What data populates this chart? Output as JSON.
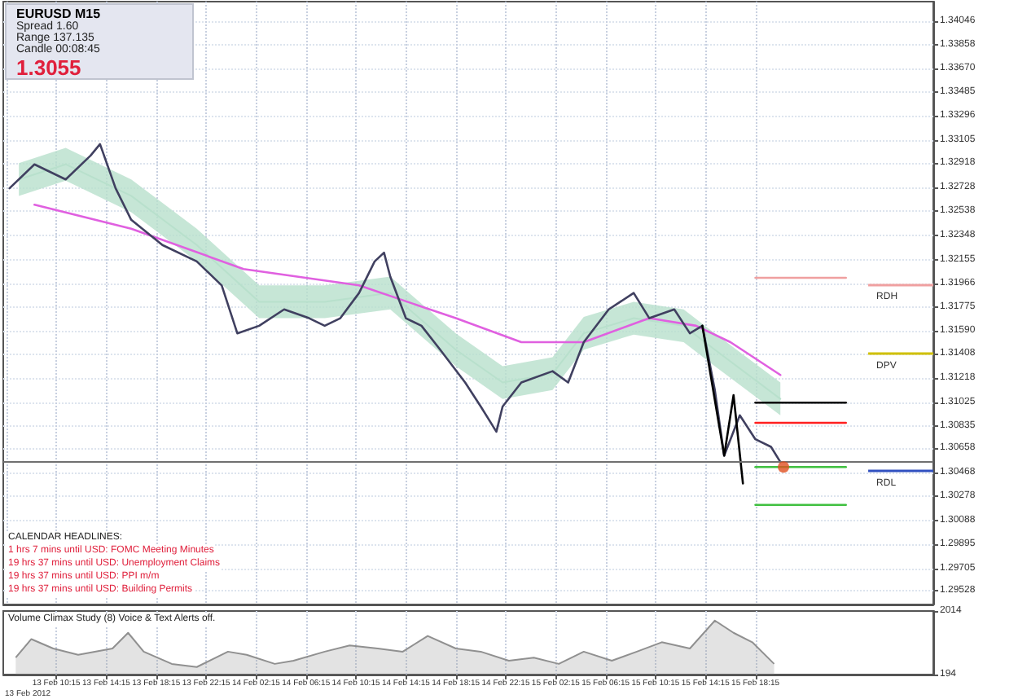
{
  "chart_data": [
    {
      "type": "line",
      "title": "EURUSD  M15",
      "annotations": [
        "Spread  1.60",
        "Range  137.135",
        "Candle  00:08:45",
        "1.3055",
        "CALENDAR HEADLINES:",
        "1 hrs 7 mins until USD: FOMC Meeting Minutes",
        "19 hrs 37 mins until USD: Unemployment Claims",
        "19 hrs 37 mins until USD: PPI m/m",
        "19 hrs 37 mins until USD: Building Permits"
      ],
      "xlim": [
        "2012-02-13T06:00",
        "2012-02-16T08:30"
      ],
      "xticks": [
        {
          "value": "2012-02-13T06:15",
          "label": null
        },
        {
          "value": "2012-02-13T10:15",
          "label": null
        },
        {
          "value": "2012-02-13T14:15",
          "label": null
        },
        {
          "value": "2012-02-13T18:15",
          "label": null
        },
        {
          "value": "2012-02-13T22:15",
          "label": null
        },
        {
          "value": "2012-02-14T02:15",
          "label": null
        },
        {
          "value": "2012-02-14T06:15",
          "label": null
        },
        {
          "value": "2012-02-14T10:15",
          "label": null
        },
        {
          "value": "2012-02-14T14:15",
          "label": null
        },
        {
          "value": "2012-02-14T18:15",
          "label": null
        },
        {
          "value": "2012-02-14T22:15",
          "label": null
        },
        {
          "value": "2012-02-15T02:15",
          "label": null
        },
        {
          "value": "2012-02-15T06:15",
          "label": null
        },
        {
          "value": "2012-02-15T10:15",
          "label": null
        },
        {
          "value": "2012-02-15T14:15",
          "label": null
        },
        {
          "value": "2012-02-15T18:15",
          "label": null
        }
      ],
      "ylim": [
        1.2942,
        1.342
      ],
      "yticks": [
        1.34046,
        1.33858,
        {
          "value": 1.3367,
          "label": "1.33670"
        },
        1.33485,
        1.33296,
        1.33105,
        1.32918,
        1.32728,
        1.32538,
        1.32348,
        1.32155,
        1.31966,
        1.31775,
        {
          "value": 1.3159,
          "label": "1.31590"
        },
        1.31408,
        1.31218,
        1.31025,
        1.30835,
        1.30658,
        1.30468,
        1.30278,
        1.30088,
        1.29895,
        1.29705,
        1.29528
      ],
      "tick_labels": "y",
      "grid": true,
      "marker": "none",
      "line_style": "solid",
      "ref_lines": [
        {
          "axis": "y",
          "value": 1.3196,
          "label": "RDH",
          "color": "#f0a0a0"
        },
        {
          "axis": "y",
          "value": 1.31408,
          "label": "DPV",
          "color": "#d0c000"
        },
        {
          "axis": "y",
          "value": 1.3048,
          "label": "RDL",
          "color": "#3050c0"
        },
        {
          "axis": "y",
          "value": 1.3055,
          "label": null,
          "color": "#707070"
        }
      ],
      "series": [
        {
          "color": "#b8e0cc",
          "x": [
            "2012-02-13T07:15",
            "2012-02-13T11:00",
            "2012-02-13T16:15",
            "2012-02-13T21:30",
            "2012-02-14T02:30",
            "2012-02-14T07:45",
            "2012-02-14T13:00",
            "2012-02-14T18:15",
            "2012-02-14T22:00",
            "2012-02-15T02:00",
            "2012-02-15T04:30",
            "2012-02-15T08:30",
            "2012-02-15T12:30",
            "2012-02-15T15:00",
            "2012-02-15T20:15"
          ],
          "values": [
            1.3279,
            1.3291,
            1.3266,
            1.3227,
            1.3182,
            1.3182,
            1.3189,
            1.3144,
            1.3118,
            1.3125,
            1.3157,
            1.3169,
            1.3163,
            1.3144,
            1.3105
          ],
          "lower": [
            1.3266,
            1.3278,
            1.3253,
            1.3214,
            1.3169,
            1.3169,
            1.3176,
            1.3131,
            1.3105,
            1.3112,
            1.3144,
            1.3156,
            1.315,
            1.3131,
            1.3092
          ],
          "upper": [
            1.3292,
            1.3304,
            1.3279,
            1.324,
            1.3195,
            1.3195,
            1.3202,
            1.3157,
            1.3131,
            1.3138,
            1.317,
            1.3182,
            1.3176,
            1.3157,
            1.3118
          ]
        },
        {
          "color": "#e060e0",
          "x": [
            "2012-02-13T08:30",
            "2012-02-13T16:15",
            "2012-02-14T01:15",
            "2012-02-14T10:30",
            "2012-02-14T18:15",
            "2012-02-14T23:30",
            "2012-02-15T04:30",
            "2012-02-15T09:45",
            "2012-02-15T13:30",
            "2012-02-15T16:15",
            "2012-02-15T20:15"
          ],
          "values": [
            1.3259,
            1.324,
            1.3208,
            1.3195,
            1.3169,
            1.315,
            1.315,
            1.3169,
            1.3163,
            1.315,
            1.3124
          ]
        },
        {
          "color": "#404060",
          "x": [
            "2012-02-13T06:30",
            "2012-02-13T08:30",
            "2012-02-13T11:00",
            "2012-02-13T13:00",
            "2012-02-13T13:45",
            "2012-02-13T15:00",
            "2012-02-13T16:15",
            "2012-02-13T18:45",
            "2012-02-13T21:30",
            "2012-02-13T23:30",
            "2012-02-14T00:45",
            "2012-02-14T02:30",
            "2012-02-14T04:30",
            "2012-02-14T06:30",
            "2012-02-14T07:45",
            "2012-02-14T09:00",
            "2012-02-14T10:30",
            "2012-02-14T11:45",
            "2012-02-14T12:30",
            "2012-02-14T13:00",
            "2012-02-14T14:15",
            "2012-02-14T15:30",
            "2012-02-14T17:00",
            "2012-02-14T19:00",
            "2012-02-14T20:15",
            "2012-02-14T21:30",
            "2012-02-14T22:00",
            "2012-02-14T23:30",
            "2012-02-15T02:00",
            "2012-02-15T03:15",
            "2012-02-15T04:30",
            "2012-02-15T06:30",
            "2012-02-15T08:30",
            "2012-02-15T09:45",
            "2012-02-15T11:45",
            "2012-02-15T13:00",
            "2012-02-15T14:00",
            "2012-02-15T15:00",
            "2012-02-15T15:45",
            "2012-02-15T17:00",
            "2012-02-15T18:15",
            "2012-02-15T19:30",
            "2012-02-15T20:15"
          ],
          "values": [
            1.3272,
            1.3291,
            1.3279,
            1.3298,
            1.3307,
            1.3272,
            1.3247,
            1.3227,
            1.3214,
            1.3195,
            1.3157,
            1.3163,
            1.3176,
            1.3169,
            1.3163,
            1.3169,
            1.3189,
            1.3214,
            1.3221,
            1.3202,
            1.3169,
            1.3163,
            1.3144,
            1.3118,
            1.3099,
            1.3079,
            1.3099,
            1.3118,
            1.3127,
            1.3118,
            1.315,
            1.3176,
            1.3189,
            1.3169,
            1.3176,
            1.3157,
            1.3163,
            1.3112,
            1.306,
            1.3092,
            1.3073,
            1.3067,
            1.3055
          ]
        },
        {
          "color": "#000000",
          "x": [
            "2012-02-15T14:00",
            "2012-02-15T15:45",
            "2012-02-15T16:30",
            "2012-02-15T17:15"
          ],
          "values": [
            1.3163,
            1.306,
            1.3108,
            1.3038
          ]
        },
        {
          "color": "#000000",
          "x": [
            "2012-02-15T18:15",
            "2012-02-16T01:30"
          ],
          "values": [
            1.3102,
            1.3102
          ]
        },
        {
          "color": "#ff2020",
          "x": [
            "2012-02-15T18:15",
            "2012-02-16T01:30"
          ],
          "values": [
            1.3086,
            1.3086
          ]
        },
        {
          "color": "#40c040",
          "x": [
            "2012-02-15T18:15",
            "2012-02-16T01:30"
          ],
          "values": [
            1.3051,
            1.3051
          ]
        },
        {
          "color": "#40c040",
          "x": [
            "2012-02-15T18:15",
            "2012-02-16T01:30"
          ],
          "values": [
            1.3021,
            1.3021
          ]
        },
        {
          "color": "#f0a0a0",
          "x": [
            "2012-02-15T18:15",
            "2012-02-16T01:30"
          ],
          "values": [
            1.3201,
            1.3201
          ]
        },
        {
          "type": "scatter",
          "marker": "circle",
          "color": "#e05020",
          "x": [
            "2012-02-15T20:30"
          ],
          "values": [
            1.3051
          ]
        }
      ]
    },
    {
      "type": "area",
      "title": "Volume Climax Study (8)   Voice & Text Alerts off.",
      "color": "#909090",
      "annotations": [
        "13 Feb 2012"
      ],
      "x": [
        "2012-02-13T07:00",
        "2012-02-13T08:15",
        "2012-02-13T10:00",
        "2012-02-13T12:00",
        "2012-02-13T14:45",
        "2012-02-13T16:00",
        "2012-02-13T17:15",
        "2012-02-13T19:30",
        "2012-02-13T21:30",
        "2012-02-14T00:00",
        "2012-02-14T01:30",
        "2012-02-14T03:45",
        "2012-02-14T05:15",
        "2012-02-14T07:45",
        "2012-02-14T09:45",
        "2012-02-14T12:00",
        "2012-02-14T14:00",
        "2012-02-14T16:00",
        "2012-02-14T18:15",
        "2012-02-14T20:15",
        "2012-02-14T22:30",
        "2012-02-15T00:30",
        "2012-02-15T02:30",
        "2012-02-15T04:30",
        "2012-02-15T06:45",
        "2012-02-15T08:45",
        "2012-02-15T10:45",
        "2012-02-15T13:00",
        "2012-02-15T15:00",
        "2012-02-15T16:30",
        "2012-02-15T18:00",
        "2012-02-15T19:45"
      ],
      "values": [
        680,
        1210,
        940,
        760,
        940,
        1390,
        850,
        500,
        410,
        850,
        760,
        500,
        590,
        850,
        1030,
        940,
        850,
        1300,
        940,
        850,
        590,
        680,
        500,
        850,
        590,
        850,
        1120,
        940,
        1740,
        1390,
        1120,
        500
      ],
      "xlim": [
        "2012-02-13T06:00",
        "2012-02-16T08:30"
      ],
      "xticks": [
        {
          "value": "2012-02-13T10:15",
          "label": "13 Feb 10:15"
        },
        {
          "value": "2012-02-13T14:15",
          "label": "13 Feb 14:15"
        },
        {
          "value": "2012-02-13T18:15",
          "label": "13 Feb 18:15"
        },
        {
          "value": "2012-02-13T22:15",
          "label": "13 Feb 22:15"
        },
        {
          "value": "2012-02-14T02:15",
          "label": "14 Feb 02:15"
        },
        {
          "value": "2012-02-14T06:15",
          "label": "14 Feb 06:15"
        },
        {
          "value": "2012-02-14T10:15",
          "label": "14 Feb 10:15"
        },
        {
          "value": "2012-02-14T14:15",
          "label": "14 Feb 14:15"
        },
        {
          "value": "2012-02-14T18:15",
          "label": "14 Feb 18:15"
        },
        {
          "value": "2012-02-14T22:15",
          "label": "14 Feb 22:15"
        },
        {
          "value": "2012-02-15T02:15",
          "label": "15 Feb 02:15"
        },
        {
          "value": "2012-02-15T06:15",
          "label": "15 Feb 06:15"
        },
        {
          "value": "2012-02-15T10:15",
          "label": "15 Feb 10:15"
        },
        {
          "value": "2012-02-15T14:15",
          "label": "15 Feb 14:15"
        },
        {
          "value": "2012-02-15T18:15",
          "label": "15 Feb 18:15"
        }
      ],
      "ylim": [
        194,
        2014
      ],
      "yticks": [
        194,
        2014
      ],
      "grid": "x",
      "marker": "none"
    }
  ]
}
